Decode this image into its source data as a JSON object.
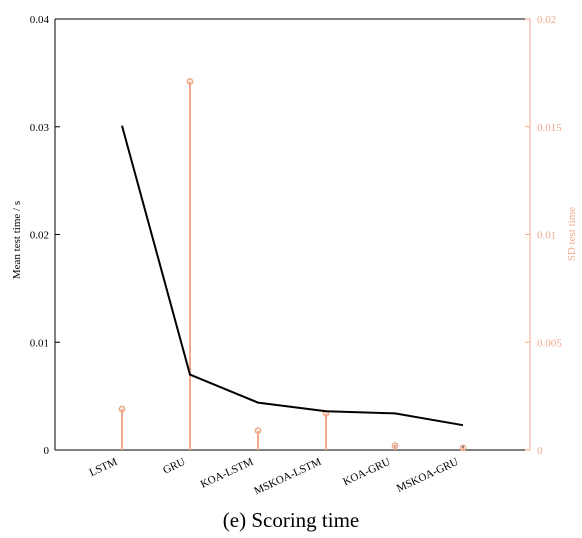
{
  "chart_data": {
    "type": "line",
    "caption": "(e) Scoring time",
    "categories": [
      "LSTM",
      "GRU",
      "KOA-LSTM",
      "MSKOA-LSTM",
      "KOA-GRU",
      "MSKOA-GRU"
    ],
    "left_axis": {
      "label": "Mean test time / s",
      "ylim": [
        0,
        0.04
      ],
      "ticks": [
        0,
        0.01,
        0.02,
        0.03,
        0.04
      ],
      "tick_labels": [
        "0",
        "0.01",
        "0.02",
        "0.03",
        "0.04"
      ]
    },
    "right_axis": {
      "label": "SD test time",
      "ylim": [
        0,
        0.02
      ],
      "ticks": [
        0,
        0.005,
        0.01,
        0.015,
        0.02
      ],
      "tick_labels": [
        "0",
        "0.005",
        "0.01",
        "0.015",
        "0.02"
      ]
    },
    "series": [
      {
        "type": "line",
        "axis": "left",
        "values": [
          0.0301,
          0.007,
          0.0044,
          0.0036,
          0.0034,
          0.0023
        ]
      },
      {
        "type": "stem",
        "axis": "right",
        "values": [
          0.0019,
          0.0171,
          0.0009,
          0.0017,
          0.0002,
          0.0001
        ]
      }
    ],
    "colors": {
      "line": "#000000",
      "stem": "#f0a98c",
      "axes": "#000000"
    },
    "grid": false
  }
}
